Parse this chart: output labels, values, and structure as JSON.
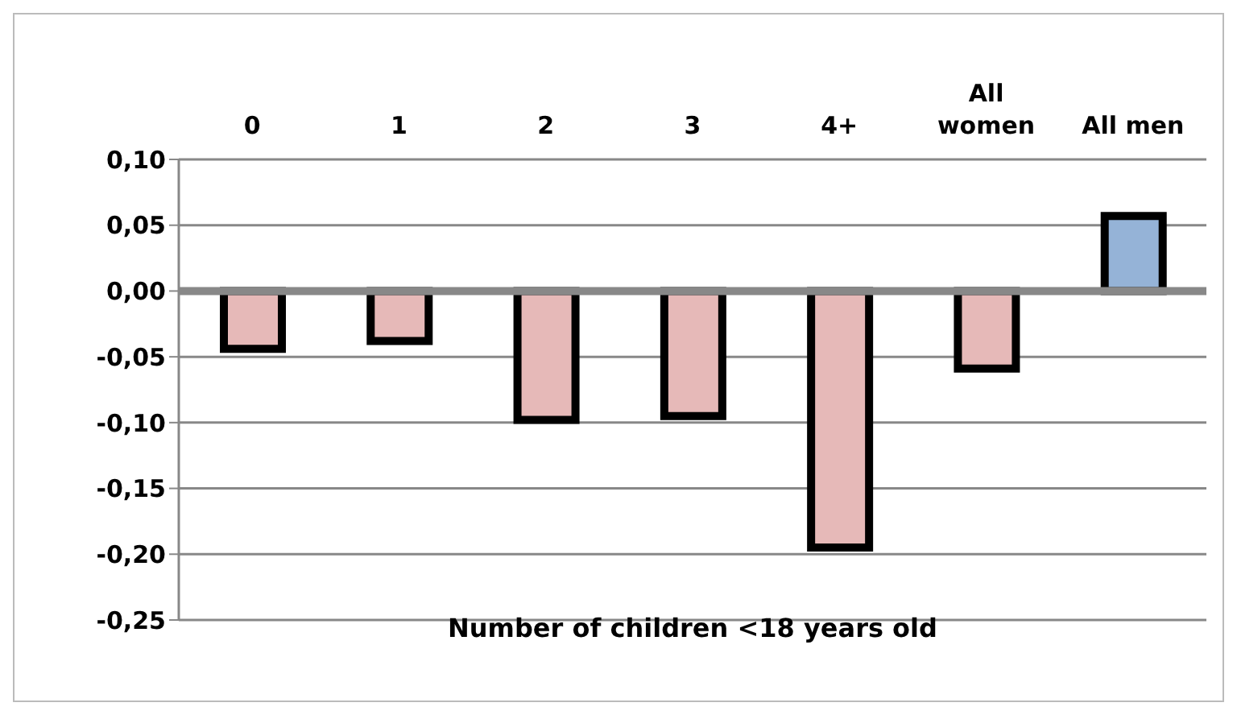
{
  "chart_data": {
    "type": "bar",
    "xlabel": "Number of children <18 years old",
    "categories": [
      "0",
      "1",
      "2",
      "3",
      "4+",
      "All women",
      "All men"
    ],
    "values": [
      -0.044,
      -0.038,
      -0.098,
      -0.095,
      -0.195,
      -0.059,
      0.057
    ],
    "colors": [
      "#e6b9b8",
      "#e6b9b8",
      "#e6b9b8",
      "#e6b9b8",
      "#e6b9b8",
      "#e6b9b8",
      "#95b3d7"
    ],
    "ylim": [
      -0.25,
      0.1
    ],
    "yticks": [
      {
        "value": 0.1,
        "label": "0,10"
      },
      {
        "value": 0.05,
        "label": "0,05"
      },
      {
        "value": 0,
        "label": "0,00"
      },
      {
        "value": -0.05,
        "label": "-0,05"
      },
      {
        "value": -0.1,
        "label": "-0,10"
      },
      {
        "value": -0.15,
        "label": "-0,15"
      },
      {
        "value": -0.2,
        "label": "-0,20"
      },
      {
        "value": -0.25,
        "label": "-0,25"
      }
    ],
    "grid": "y",
    "legend": false
  }
}
